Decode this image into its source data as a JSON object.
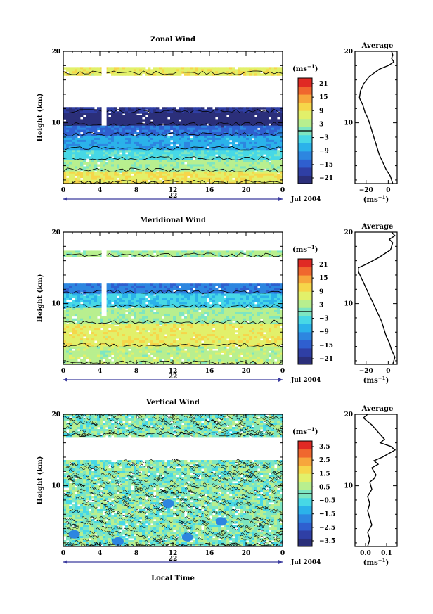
{
  "chart_data": [
    {
      "type": "heatmap",
      "title": "Zonal Wind",
      "ylabel": "Height (km)",
      "xlabel": "",
      "x_ticks": [
        "0",
        "4",
        "8",
        "12",
        "16",
        "20",
        "0"
      ],
      "y_ticks": [
        "10",
        "20"
      ],
      "xlim": [
        0,
        24
      ],
      "ylim": [
        1.5,
        20
      ],
      "date_day": "22",
      "date_month": "Jul 2004",
      "colorbar": {
        "unit": "(ms",
        "unit_exp": "−1",
        "unit_close": ")",
        "ticks": [
          "21",
          "15",
          "9",
          "3",
          "−3",
          "−9",
          "−15",
          "−21"
        ],
        "range": [
          -24,
          24
        ],
        "zero_line": 0
      },
      "layers": [
        {
          "top": 20,
          "bottom": 17.8,
          "value": null
        },
        {
          "top": 17.8,
          "bottom": 16.8,
          "value": 8
        },
        {
          "top": 16.8,
          "bottom": 12.2,
          "value": null
        },
        {
          "top": 12.2,
          "bottom": 11.4,
          "value": -20
        },
        {
          "top": 11.4,
          "bottom": 9.6,
          "value": -24
        },
        {
          "top": 9.6,
          "bottom": 8.2,
          "value": -14
        },
        {
          "top": 8.2,
          "bottom": 6.2,
          "value": -8
        },
        {
          "top": 6.2,
          "bottom": 4.8,
          "value": -3
        },
        {
          "top": 4.8,
          "bottom": 3.2,
          "value": 3
        },
        {
          "top": 3.2,
          "bottom": 1.5,
          "value": 9
        }
      ],
      "average_profile": {
        "title": "Average",
        "xlabel": "(ms",
        "xlabel_exp": "−1",
        "xlabel_close": ")",
        "x_ticks": [
          "−20",
          "0"
        ],
        "xlim": [
          -30,
          8
        ],
        "y_ticks": [
          "10",
          "20"
        ],
        "heights": [
          1.5,
          2.5,
          3.5,
          4.5,
          5.5,
          6.5,
          7.5,
          8.5,
          9.5,
          10.5,
          11.5,
          12.5,
          13.5,
          14.5,
          15.5,
          16.5,
          17.5,
          18.0,
          18.5,
          19.0,
          19.5,
          20.0
        ],
        "values": [
          4,
          2,
          -2,
          -5,
          -8,
          -10,
          -12,
          -14,
          -16,
          -18,
          -21,
          -23,
          -26,
          -25,
          -22,
          -17,
          -8,
          0,
          5,
          3,
          4,
          3
        ]
      }
    },
    {
      "type": "heatmap",
      "title": "Meridional Wind",
      "ylabel": "Height (km)",
      "xlabel": "",
      "x_ticks": [
        "0",
        "4",
        "8",
        "12",
        "16",
        "20",
        "0"
      ],
      "y_ticks": [
        "10",
        "20"
      ],
      "xlim": [
        0,
        24
      ],
      "ylim": [
        1.5,
        20
      ],
      "date_day": "22",
      "date_month": "Jul 2004",
      "colorbar": {
        "unit": "(ms",
        "unit_exp": "−1",
        "unit_close": ")",
        "ticks": [
          "21",
          "15",
          "9",
          "3",
          "−3",
          "−9",
          "−15",
          "−21"
        ],
        "range": [
          -24,
          24
        ],
        "zero_line": 0
      },
      "layers": [
        {
          "top": 20,
          "bottom": 17.4,
          "value": null
        },
        {
          "top": 17.4,
          "bottom": 16.6,
          "value": 3
        },
        {
          "top": 16.6,
          "bottom": 12.8,
          "value": null
        },
        {
          "top": 12.8,
          "bottom": 11.4,
          "value": -12
        },
        {
          "top": 11.4,
          "bottom": 9.4,
          "value": -5
        },
        {
          "top": 9.4,
          "bottom": 7.2,
          "value": 3
        },
        {
          "top": 7.2,
          "bottom": 4.0,
          "value": 8
        },
        {
          "top": 4.0,
          "bottom": 1.5,
          "value": 4
        }
      ],
      "average_profile": {
        "title": "Average",
        "xlabel": "(ms",
        "xlabel_exp": "−1",
        "xlabel_close": ")",
        "x_ticks": [
          "−20",
          "0"
        ],
        "xlim": [
          -30,
          8
        ],
        "y_ticks": [
          "10",
          "20"
        ],
        "heights": [
          1.5,
          2.5,
          3.5,
          4.5,
          5.5,
          6.5,
          7.5,
          8.5,
          9.5,
          10.5,
          11.5,
          12.5,
          13.5,
          14.5,
          15.0,
          15.5,
          16.5,
          17.5,
          18.5,
          19.0,
          19.5,
          20.0
        ],
        "values": [
          4,
          6,
          3,
          1,
          -2,
          -4,
          -6,
          -9,
          -12,
          -15,
          -18,
          -21,
          -24,
          -27,
          -27,
          -20,
          -8,
          2,
          4,
          1,
          6,
          3
        ]
      }
    },
    {
      "type": "heatmap",
      "title": "Vertical Wind",
      "ylabel": "Height (km)",
      "xlabel": "Local Time",
      "x_ticks": [
        "0",
        "4",
        "8",
        "12",
        "16",
        "20",
        "0"
      ],
      "y_ticks": [
        "10",
        "20"
      ],
      "xlim": [
        0,
        24
      ],
      "ylim": [
        1.5,
        20
      ],
      "date_day": "22",
      "date_month": "Jul 2004",
      "colorbar": {
        "unit": "(ms",
        "unit_exp": "−1",
        "unit_close": ")",
        "ticks": [
          "3.5",
          "2.5",
          "1.5",
          "0.5",
          "−0.5",
          "−1.5",
          "−2.5",
          "−3.5"
        ],
        "range": [
          -4,
          4
        ],
        "zero_line": 0
      },
      "layers": [
        {
          "top": 20,
          "bottom": 17.0,
          "value": 0.1
        },
        {
          "top": 17.0,
          "bottom": 13.6,
          "value": null
        },
        {
          "top": 13.6,
          "bottom": 1.5,
          "value": 0.1
        }
      ],
      "average_profile": {
        "title": "Average",
        "xlabel": "(ms",
        "xlabel_exp": "−1",
        "xlabel_close": ")",
        "x_ticks": [
          "0.0",
          "0.1"
        ],
        "xlim": [
          -0.05,
          0.15
        ],
        "y_ticks": [
          "10",
          "20"
        ],
        "heights": [
          1.5,
          2.5,
          3.5,
          4.5,
          5.5,
          6.5,
          7.5,
          8.5,
          9.5,
          10.5,
          11.0,
          11.5,
          12.5,
          13.0,
          13.5,
          14.0,
          14.5,
          15.0,
          15.5,
          16.0,
          16.5,
          17.5,
          18.5,
          19.5,
          20.0
        ],
        "values": [
          0.01,
          0.02,
          0.01,
          0.03,
          0.02,
          0.01,
          0.02,
          0.01,
          0.03,
          0.02,
          0.04,
          0.05,
          0.03,
          0.06,
          0.04,
          0.08,
          0.11,
          0.14,
          0.12,
          0.07,
          0.09,
          0.06,
          0.03,
          -0.01,
          0.01
        ]
      }
    }
  ]
}
